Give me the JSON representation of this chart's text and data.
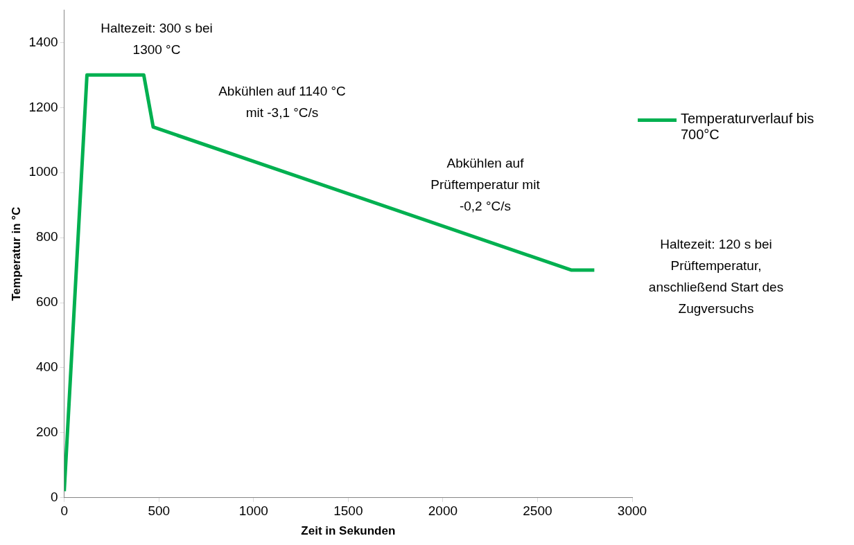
{
  "chart_data": {
    "type": "line",
    "xlabel": "Zeit in Sekunden",
    "ylabel": "Temperatur in °C",
    "x": [
      0,
      120,
      420,
      470,
      2680,
      2800
    ],
    "series": [
      {
        "name": "Temperaturverlauf bis 700°C",
        "color": "#00b050",
        "values": [
          20,
          1300,
          1300,
          1140,
          700,
          700
        ]
      }
    ],
    "xlim": [
      0,
      3000
    ],
    "xticks": [
      0,
      500,
      1000,
      1500,
      2000,
      2500,
      3000
    ],
    "ylim": [
      0,
      1500
    ],
    "yticks": [
      0,
      200,
      400,
      600,
      800,
      1000,
      1200,
      1400
    ],
    "grid": false,
    "legend": "right",
    "marker": "none",
    "line_style": "solid",
    "annotations": [
      "Haltezeit: 300 s bei\n1300 °C",
      "Abkühlen auf 1140 °C\nmit -3,1 °C/s",
      "Abkühlen auf\nPrüftemperatur mit\n-0,2 °C/s",
      "Haltezeit: 120 s bei\nPrüftemperatur,\nanschließend Start des\nZugversuchs"
    ]
  }
}
